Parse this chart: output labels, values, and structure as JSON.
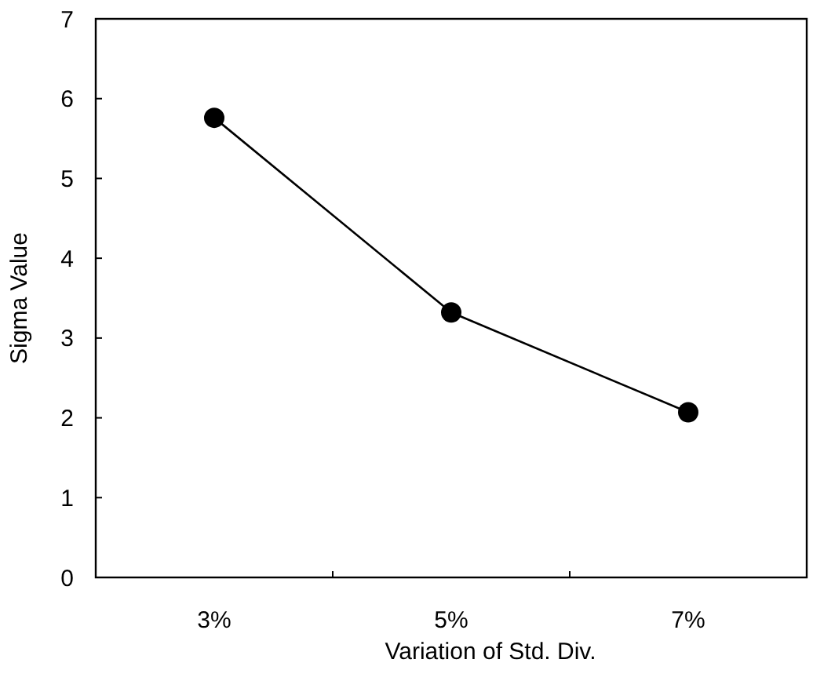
{
  "chart_data": {
    "type": "line",
    "xlabel": "Variation of Std. Div.",
    "ylabel": "Sigma Value",
    "categories": [
      "3%",
      "5%",
      "7%"
    ],
    "series": [
      {
        "color": "#000000",
        "values": [
          5.76,
          3.32,
          2.07
        ]
      }
    ],
    "ylim": [
      0,
      7
    ],
    "yticks": [
      0,
      1,
      2,
      3,
      4,
      5,
      6,
      7
    ],
    "marker": "circle",
    "line_style": "solid",
    "grid": false
  }
}
